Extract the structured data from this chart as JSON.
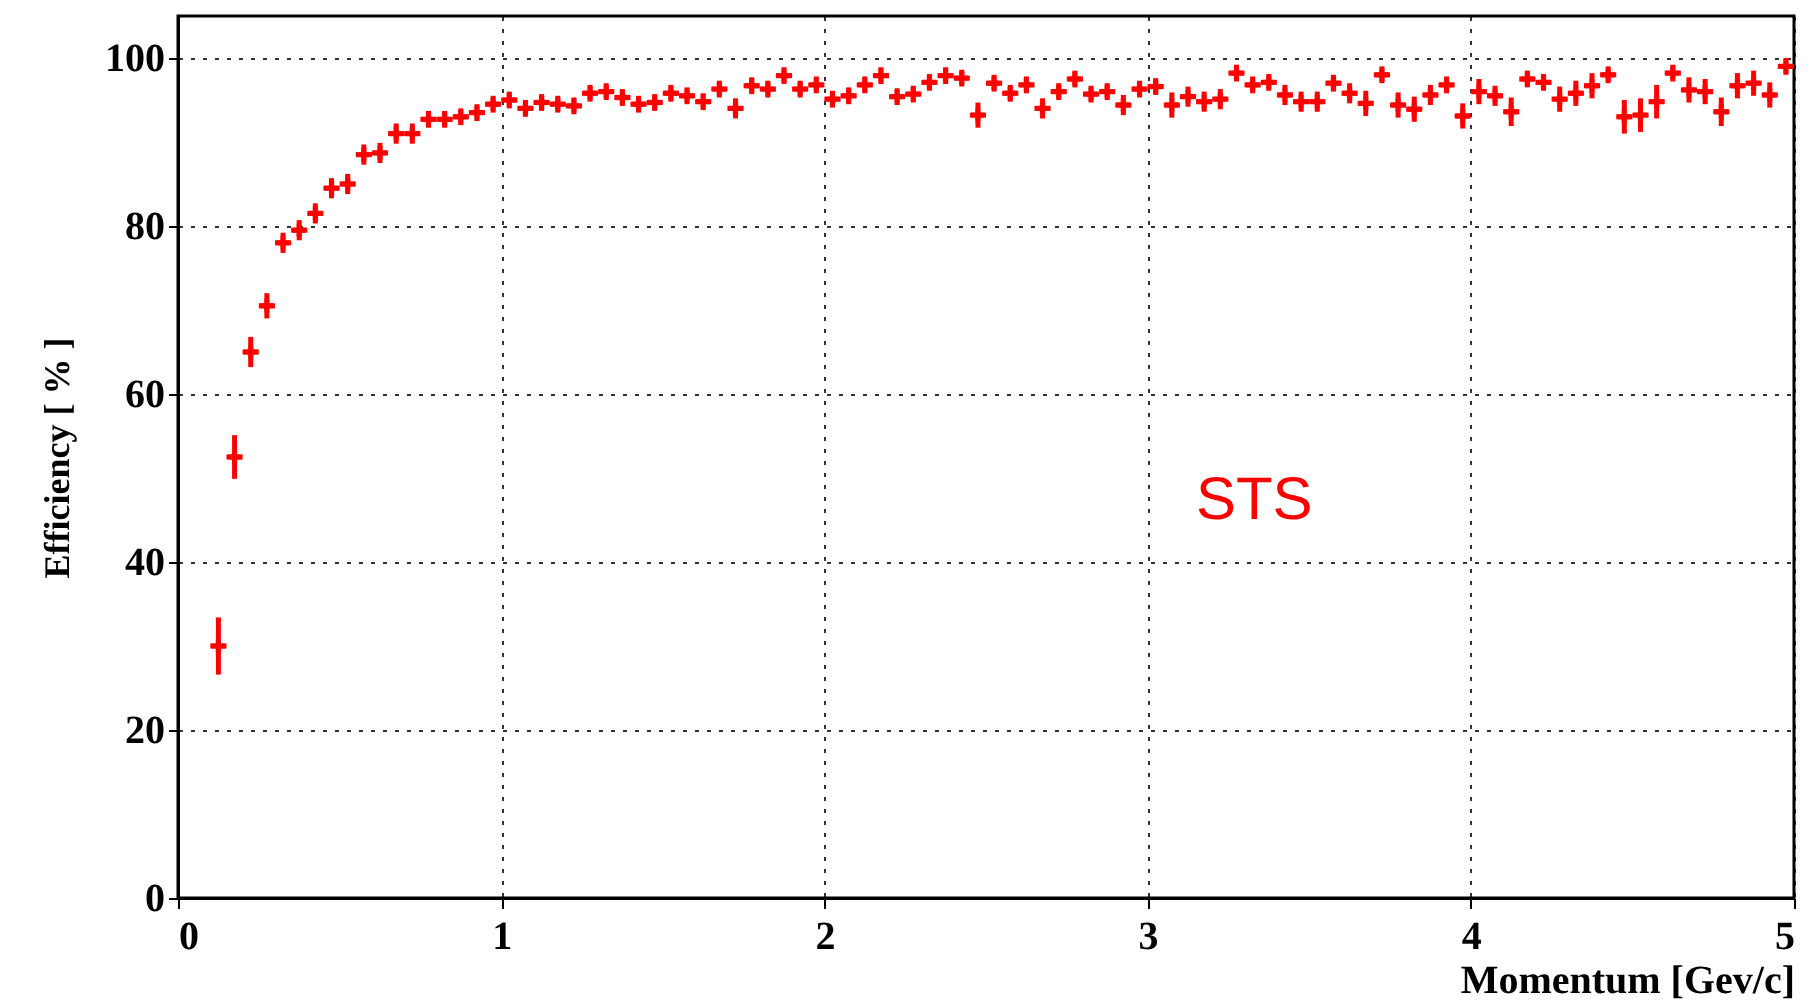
{
  "chart_data": {
    "type": "scatter",
    "xlabel": "Momentum [Gev/c]",
    "ylabel": "Efficiency [ % ]",
    "annotations": [
      "STS"
    ],
    "x": [
      0.125,
      0.175,
      0.225,
      0.275,
      0.325,
      0.375,
      0.425,
      0.475,
      0.525,
      0.575,
      0.625,
      0.675,
      0.725,
      0.775,
      0.825,
      0.875,
      0.925,
      0.975,
      1.025,
      1.075,
      1.125,
      1.175,
      1.225,
      1.275,
      1.325,
      1.375,
      1.425,
      1.475,
      1.525,
      1.575,
      1.625,
      1.675,
      1.725,
      1.775,
      1.825,
      1.875,
      1.925,
      1.975,
      2.025,
      2.075,
      2.125,
      2.175,
      2.225,
      2.275,
      2.325,
      2.375,
      2.425,
      2.475,
      2.525,
      2.575,
      2.625,
      2.675,
      2.725,
      2.775,
      2.825,
      2.875,
      2.925,
      2.975,
      3.025,
      3.075,
      3.125,
      3.175,
      3.225,
      3.275,
      3.325,
      3.375,
      3.425,
      3.475,
      3.525,
      3.575,
      3.625,
      3.675,
      3.725,
      3.775,
      3.825,
      3.875,
      3.925,
      3.975,
      4.025,
      4.075,
      4.125,
      4.175,
      4.225,
      4.275,
      4.325,
      4.375,
      4.425,
      4.475,
      4.525,
      4.575,
      4.625,
      4.675,
      4.725,
      4.775,
      4.825,
      4.875,
      4.925,
      4.975
    ],
    "series": [
      {
        "color": "#ff0000",
        "values": [
          30,
          52.5,
          65,
          70.5,
          78,
          79.5,
          81.5,
          84.5,
          85,
          88.5,
          88.7,
          91,
          91,
          92.7,
          92.7,
          93,
          93.5,
          94.5,
          95,
          94,
          94.7,
          94.5,
          94.3,
          95.8,
          96,
          95.3,
          94.5,
          94.7,
          95.8,
          95.5,
          94.8,
          96.3,
          94,
          96.7,
          96.3,
          97.9,
          96.3,
          96.8,
          95.1,
          95.5,
          96.8,
          97.9,
          95.4,
          95.7,
          97.1,
          97.9,
          97.6,
          93.2,
          97,
          95.8,
          96.8,
          94,
          96,
          97.5,
          95.7,
          96,
          94.4,
          96.3,
          96.6,
          94.4,
          95.4,
          94.8,
          95.1,
          98.2,
          96.8,
          97.1,
          95.6,
          94.8,
          94.8,
          97,
          95.8,
          94.6,
          98,
          94.4,
          93.9,
          95.6,
          96.8,
          93.1,
          96,
          95.5,
          93.6,
          97.5,
          97.1,
          95.1,
          95.8,
          96.7,
          98,
          93,
          93.2,
          94.8,
          98.2,
          96.2,
          96,
          93.6,
          96.7,
          97,
          95.6,
          99
        ],
        "errors": [
          3.4,
          2.6,
          1.8,
          1.5,
          1.2,
          1.2,
          1.2,
          1.2,
          1.2,
          1.2,
          1.2,
          1.2,
          1.2,
          1,
          1,
          1,
          1,
          1,
          1,
          1,
          1,
          1,
          1,
          1,
          1,
          1,
          1,
          1,
          1,
          1,
          1,
          1,
          1.2,
          1,
          1,
          1,
          1,
          1,
          1,
          1,
          1,
          1,
          1,
          1,
          1,
          1,
          1,
          1.5,
          1,
          1,
          1,
          1.2,
          1,
          1,
          1,
          1,
          1.2,
          1,
          1,
          1.5,
          1.2,
          1.2,
          1.2,
          1,
          1,
          1,
          1.2,
          1.2,
          1.2,
          1,
          1.2,
          1.5,
          1,
          1.5,
          1.5,
          1.2,
          1,
          1.5,
          1.5,
          1.2,
          1.7,
          1,
          1,
          1.5,
          1.5,
          1.5,
          1,
          2,
          2,
          2,
          1,
          1.5,
          1.5,
          1.7,
          1.5,
          1.5,
          1.5,
          1
        ],
        "xerrors": [
          0.025,
          0.025,
          0.025,
          0.025,
          0.025,
          0.025,
          0.025,
          0.025,
          0.025,
          0.025,
          0.025,
          0.025,
          0.025,
          0.025,
          0.025,
          0.025,
          0.025,
          0.025,
          0.025,
          0.025,
          0.025,
          0.025,
          0.025,
          0.025,
          0.025,
          0.025,
          0.025,
          0.025,
          0.025,
          0.025,
          0.025,
          0.025,
          0.025,
          0.025,
          0.025,
          0.025,
          0.025,
          0.025,
          0.025,
          0.025,
          0.025,
          0.025,
          0.025,
          0.025,
          0.025,
          0.025,
          0.025,
          0.025,
          0.025,
          0.025,
          0.025,
          0.025,
          0.025,
          0.025,
          0.025,
          0.025,
          0.025,
          0.025,
          0.025,
          0.025,
          0.025,
          0.025,
          0.025,
          0.025,
          0.025,
          0.025,
          0.025,
          0.025,
          0.025,
          0.025,
          0.025,
          0.025,
          0.025,
          0.025,
          0.025,
          0.025,
          0.025,
          0.025,
          0.025,
          0.025,
          0.025,
          0.025,
          0.025,
          0.025,
          0.025,
          0.025,
          0.025,
          0.025,
          0.025,
          0.025,
          0.025,
          0.025,
          0.025,
          0.025,
          0.025,
          0.025,
          0.025,
          0.025
        ]
      }
    ],
    "xlim": [
      0,
      5
    ],
    "ylim": [
      0,
      105
    ],
    "xticks": [
      0,
      1,
      2,
      3,
      4,
      5
    ],
    "yticks": [
      0,
      20,
      40,
      60,
      80,
      100
    ],
    "grid": true,
    "marker": "cross"
  }
}
